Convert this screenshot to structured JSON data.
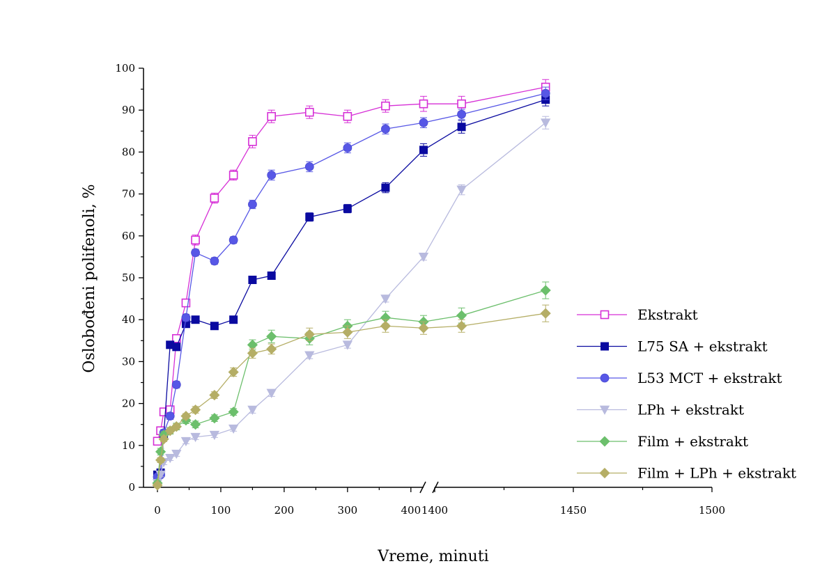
{
  "chart_data": {
    "type": "line",
    "xlabel": "Vreme, minuti",
    "ylabel": "Oslobođeni polifenoli, %",
    "ylim": [
      0,
      100
    ],
    "x_axis_broken": true,
    "x_segments": [
      {
        "range": [
          0,
          420
        ],
        "ticks": [
          "0",
          "100",
          "200",
          "300",
          "400"
        ]
      },
      {
        "range": [
          1400,
          1500
        ],
        "ticks": [
          "1400",
          "1450",
          "1500"
        ]
      }
    ],
    "y_ticks": [
      "0",
      "10",
      "20",
      "30",
      "40",
      "50",
      "60",
      "70",
      "80",
      "90",
      "100"
    ],
    "legend_position": "right",
    "series": [
      {
        "name": "Ekstrakt",
        "color": "#d62fd6",
        "marker": "open-square",
        "x": [
          0,
          5,
          10,
          20,
          30,
          45,
          60,
          90,
          120,
          150,
          180,
          240,
          300,
          360,
          420,
          480,
          1440
        ],
        "y": [
          11,
          13.5,
          18,
          18.5,
          35.5,
          44,
          59,
          69,
          74.5,
          82.5,
          88.5,
          89.5,
          88.5,
          91,
          91.5,
          91.5,
          95.5
        ],
        "err": [
          0.8,
          0.8,
          0.8,
          0.8,
          0.8,
          0.8,
          1.2,
          1.2,
          1.2,
          1.5,
          1.5,
          1.5,
          1.5,
          1.5,
          1.8,
          1.8,
          1.8
        ]
      },
      {
        "name": "L75 SA + ekstrakt",
        "color": "#0a0aa0",
        "marker": "square",
        "x": [
          0,
          5,
          10,
          20,
          30,
          45,
          60,
          90,
          120,
          150,
          180,
          240,
          300,
          360,
          420,
          480,
          1440
        ],
        "y": [
          3,
          3.5,
          12.5,
          34,
          33.5,
          39,
          40,
          38.5,
          40,
          49.5,
          50.5,
          64.5,
          66.5,
          71.5,
          80.5,
          86,
          92.5
        ],
        "err": [
          0.6,
          0.6,
          0.8,
          0.8,
          0.8,
          0.8,
          0.8,
          0.8,
          0.8,
          0.8,
          0.8,
          1.0,
          1.0,
          1.2,
          1.5,
          1.5,
          1.5
        ]
      },
      {
        "name": "L53 MCT + ekstrakt",
        "color": "#5757e6",
        "marker": "circle",
        "x": [
          0,
          5,
          10,
          20,
          30,
          45,
          60,
          90,
          120,
          150,
          180,
          240,
          300,
          360,
          420,
          480,
          1440
        ],
        "y": [
          2.5,
          3,
          13,
          17,
          24.5,
          40.5,
          56,
          54,
          59,
          67.5,
          74.5,
          76.5,
          81,
          85.5,
          87,
          89,
          94
        ],
        "err": [
          0.6,
          0.6,
          0.8,
          0.8,
          0.8,
          0.8,
          0.8,
          0.8,
          0.8,
          1.0,
          1.2,
          1.2,
          1.2,
          1.2,
          1.2,
          1.2,
          1.5
        ]
      },
      {
        "name": "LPh + ekstrakt",
        "color": "#b8bade",
        "marker": "triangle-down",
        "x": [
          0,
          5,
          10,
          20,
          30,
          45,
          60,
          90,
          120,
          150,
          180,
          240,
          300,
          360,
          420,
          480,
          1440
        ],
        "y": [
          1,
          3,
          6,
          7,
          8,
          11,
          12,
          12.5,
          14,
          18.5,
          22.5,
          31.5,
          34,
          45,
          55,
          71,
          87
        ],
        "err": [
          0.5,
          0.5,
          0.6,
          0.6,
          0.6,
          0.6,
          0.6,
          0.6,
          0.6,
          0.8,
          0.8,
          0.8,
          0.8,
          0.8,
          0.8,
          1.2,
          1.5
        ]
      },
      {
        "name": "Film + ekstrakt",
        "color": "#6cbf6c",
        "marker": "diamond",
        "x": [
          0,
          5,
          10,
          20,
          30,
          45,
          60,
          90,
          120,
          150,
          180,
          240,
          300,
          360,
          420,
          480,
          1440
        ],
        "y": [
          1,
          8.5,
          12.5,
          13.5,
          14.5,
          16,
          15,
          16.5,
          18,
          34,
          36,
          35.5,
          38.5,
          40.5,
          39.5,
          41,
          47
        ],
        "err": [
          0.5,
          0.8,
          0.8,
          0.8,
          0.8,
          0.8,
          0.8,
          0.8,
          0.8,
          1.2,
          1.5,
          1.5,
          1.5,
          1.5,
          1.5,
          1.8,
          2.0
        ]
      },
      {
        "name": "Film + LPh + ekstrakt",
        "color": "#b5ae66",
        "marker": "diamond",
        "x": [
          0,
          5,
          10,
          20,
          30,
          45,
          60,
          90,
          120,
          150,
          180,
          240,
          300,
          360,
          420,
          480,
          1440
        ],
        "y": [
          0.5,
          6.5,
          11.5,
          13.5,
          14.5,
          17,
          18.5,
          22,
          27.5,
          32,
          33,
          36.5,
          37,
          38.5,
          38,
          38.5,
          41.5
        ],
        "err": [
          0.5,
          0.6,
          0.6,
          0.6,
          0.6,
          0.6,
          0.8,
          0.8,
          1.0,
          1.2,
          1.2,
          1.5,
          1.5,
          1.5,
          1.5,
          1.5,
          2.0
        ]
      }
    ]
  }
}
